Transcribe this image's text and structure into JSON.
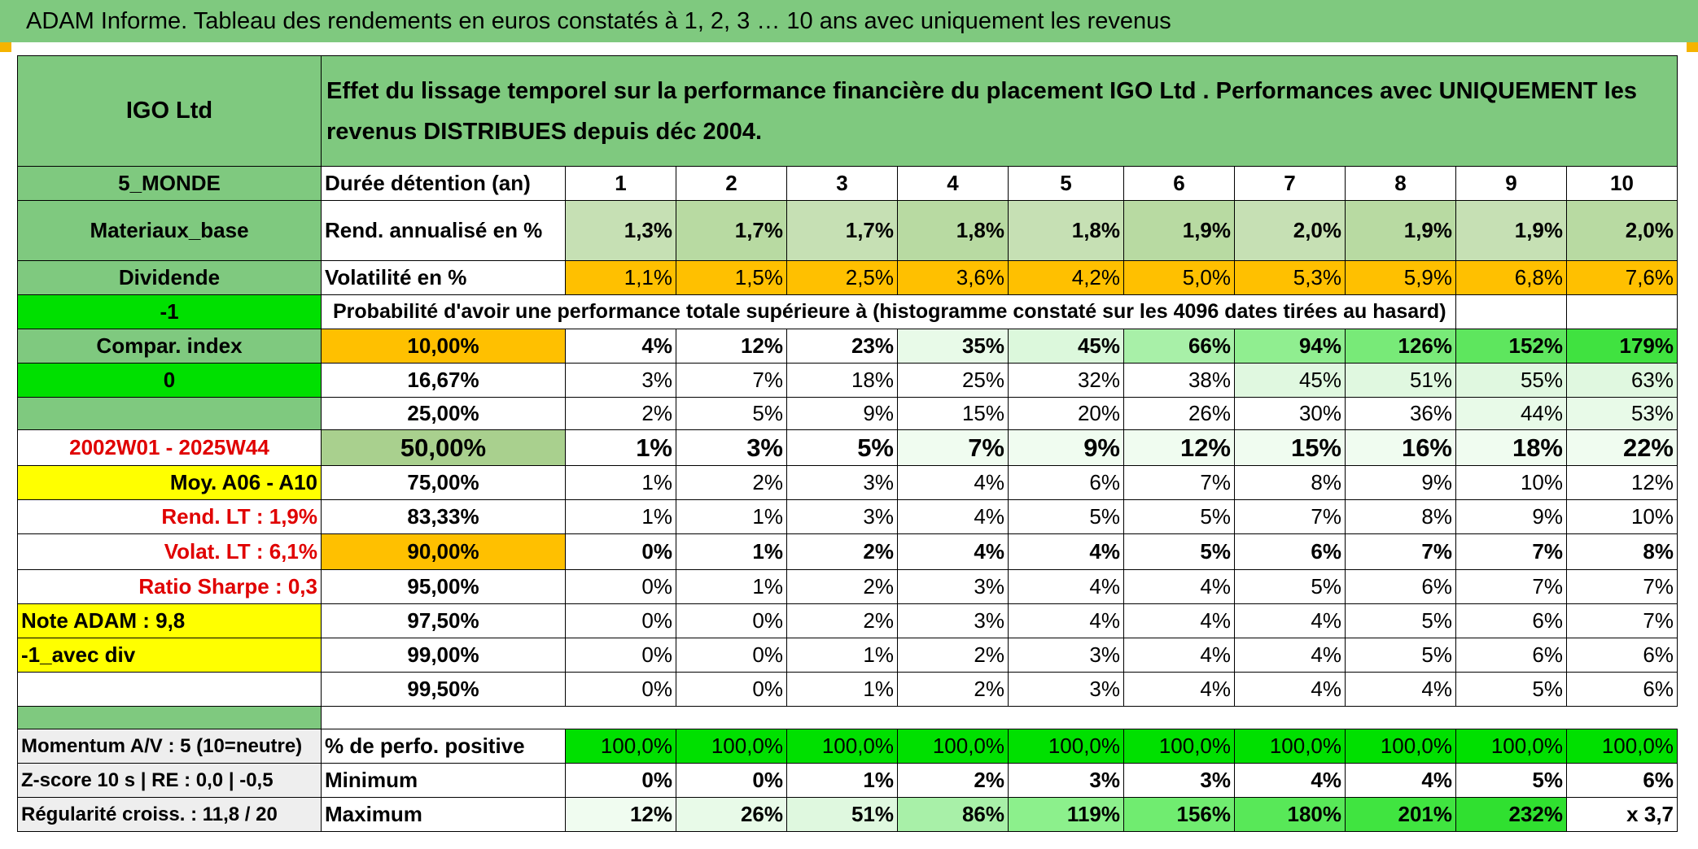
{
  "title": "ADAM Informe. Tableau des rendements en euros constatés à 1, 2, 3 … 10 ans avec uniquement les revenus",
  "header_left": "IGO Ltd",
  "header_right": "Effet du lissage temporel sur la performance financière du placement IGO Ltd . Performances avec UNIQUEMENT les revenus DISTRIBUES depuis déc 2004.",
  "left": {
    "region": "5_MONDE",
    "sector": "Materiaux_base",
    "type": "Dividende",
    "flag1": "-1",
    "compar": "Compar. index",
    "flag2": "0",
    "period": "2002W01 - 2025W44",
    "moy": "Moy. A06 - A10",
    "rend_lt": "Rend. LT :    1,9%",
    "volat_lt": "Volat. LT :    6,1%",
    "sharpe": "Ratio Sharpe :    0,3",
    "note": "Note ADAM : 9,8",
    "div": "-1_avec div",
    "momentum": "Momentum A/V : 5 (10=neutre)",
    "zscore": "Z-score 10 s | RE : 0,0 | -0,5",
    "regularite": "Régularité croiss. : 11,8 / 20"
  },
  "labels": {
    "duree": "Durée détention (an)",
    "rend": "Rend. annualisé en %",
    "volat": "Volatilité en %",
    "proba": "Probabilité d'avoir une performance totale supérieure à (histogramme constaté sur les 4096 dates tirées au hasard)",
    "positive": "% de perfo. positive",
    "minimum": "Minimum",
    "maximum": "Maximum"
  },
  "years": [
    "1",
    "2",
    "3",
    "4",
    "5",
    "6",
    "7",
    "8",
    "9",
    "10"
  ],
  "rend": [
    "1,3%",
    "1,7%",
    "1,7%",
    "1,8%",
    "1,8%",
    "1,9%",
    "2,0%",
    "1,9%",
    "1,9%",
    "2,0%"
  ],
  "volat": [
    "1,1%",
    "1,5%",
    "2,5%",
    "3,6%",
    "4,2%",
    "5,0%",
    "5,3%",
    "5,9%",
    "6,8%",
    "7,6%"
  ],
  "proba_rows": [
    {
      "p": "10,00%",
      "v": [
        "4%",
        "12%",
        "23%",
        "35%",
        "45%",
        "66%",
        "94%",
        "126%",
        "152%",
        "179%"
      ]
    },
    {
      "p": "16,67%",
      "v": [
        "3%",
        "7%",
        "18%",
        "25%",
        "32%",
        "38%",
        "45%",
        "51%",
        "55%",
        "63%"
      ]
    },
    {
      "p": "25,00%",
      "v": [
        "2%",
        "5%",
        "9%",
        "15%",
        "20%",
        "26%",
        "30%",
        "36%",
        "44%",
        "53%"
      ]
    },
    {
      "p": "50,00%",
      "v": [
        "1%",
        "3%",
        "5%",
        "7%",
        "9%",
        "12%",
        "15%",
        "16%",
        "18%",
        "22%"
      ]
    },
    {
      "p": "75,00%",
      "v": [
        "1%",
        "2%",
        "3%",
        "4%",
        "6%",
        "7%",
        "8%",
        "9%",
        "10%",
        "12%"
      ]
    },
    {
      "p": "83,33%",
      "v": [
        "1%",
        "1%",
        "3%",
        "4%",
        "5%",
        "5%",
        "7%",
        "8%",
        "9%",
        "10%"
      ]
    },
    {
      "p": "90,00%",
      "v": [
        "0%",
        "1%",
        "2%",
        "4%",
        "4%",
        "5%",
        "6%",
        "7%",
        "7%",
        "8%"
      ]
    },
    {
      "p": "95,00%",
      "v": [
        "0%",
        "1%",
        "2%",
        "3%",
        "4%",
        "4%",
        "5%",
        "6%",
        "7%",
        "7%"
      ]
    },
    {
      "p": "97,50%",
      "v": [
        "0%",
        "0%",
        "2%",
        "3%",
        "4%",
        "4%",
        "4%",
        "5%",
        "6%",
        "7%"
      ]
    },
    {
      "p": "99,00%",
      "v": [
        "0%",
        "0%",
        "1%",
        "2%",
        "3%",
        "4%",
        "4%",
        "5%",
        "6%",
        "6%"
      ]
    },
    {
      "p": "99,50%",
      "v": [
        "0%",
        "0%",
        "1%",
        "2%",
        "3%",
        "4%",
        "4%",
        "4%",
        "5%",
        "6%"
      ]
    }
  ],
  "positive": [
    "100,0%",
    "100,0%",
    "100,0%",
    "100,0%",
    "100,0%",
    "100,0%",
    "100,0%",
    "100,0%",
    "100,0%",
    "100,0%"
  ],
  "minimum": [
    "0%",
    "0%",
    "1%",
    "2%",
    "3%",
    "3%",
    "4%",
    "4%",
    "5%",
    "6%"
  ],
  "maximum": [
    "12%",
    "26%",
    "51%",
    "86%",
    "119%",
    "156%",
    "180%",
    "201%",
    "232%",
    "x 3,7"
  ],
  "colors": {
    "header_green": "#7fc97f",
    "bright_green": "#00e000",
    "yellow": "#ffff00",
    "orange": "#ffc000",
    "rend_green": "#c6e0b4",
    "rend_green_dark": "#b4d89e",
    "red_text": "#e00000"
  }
}
